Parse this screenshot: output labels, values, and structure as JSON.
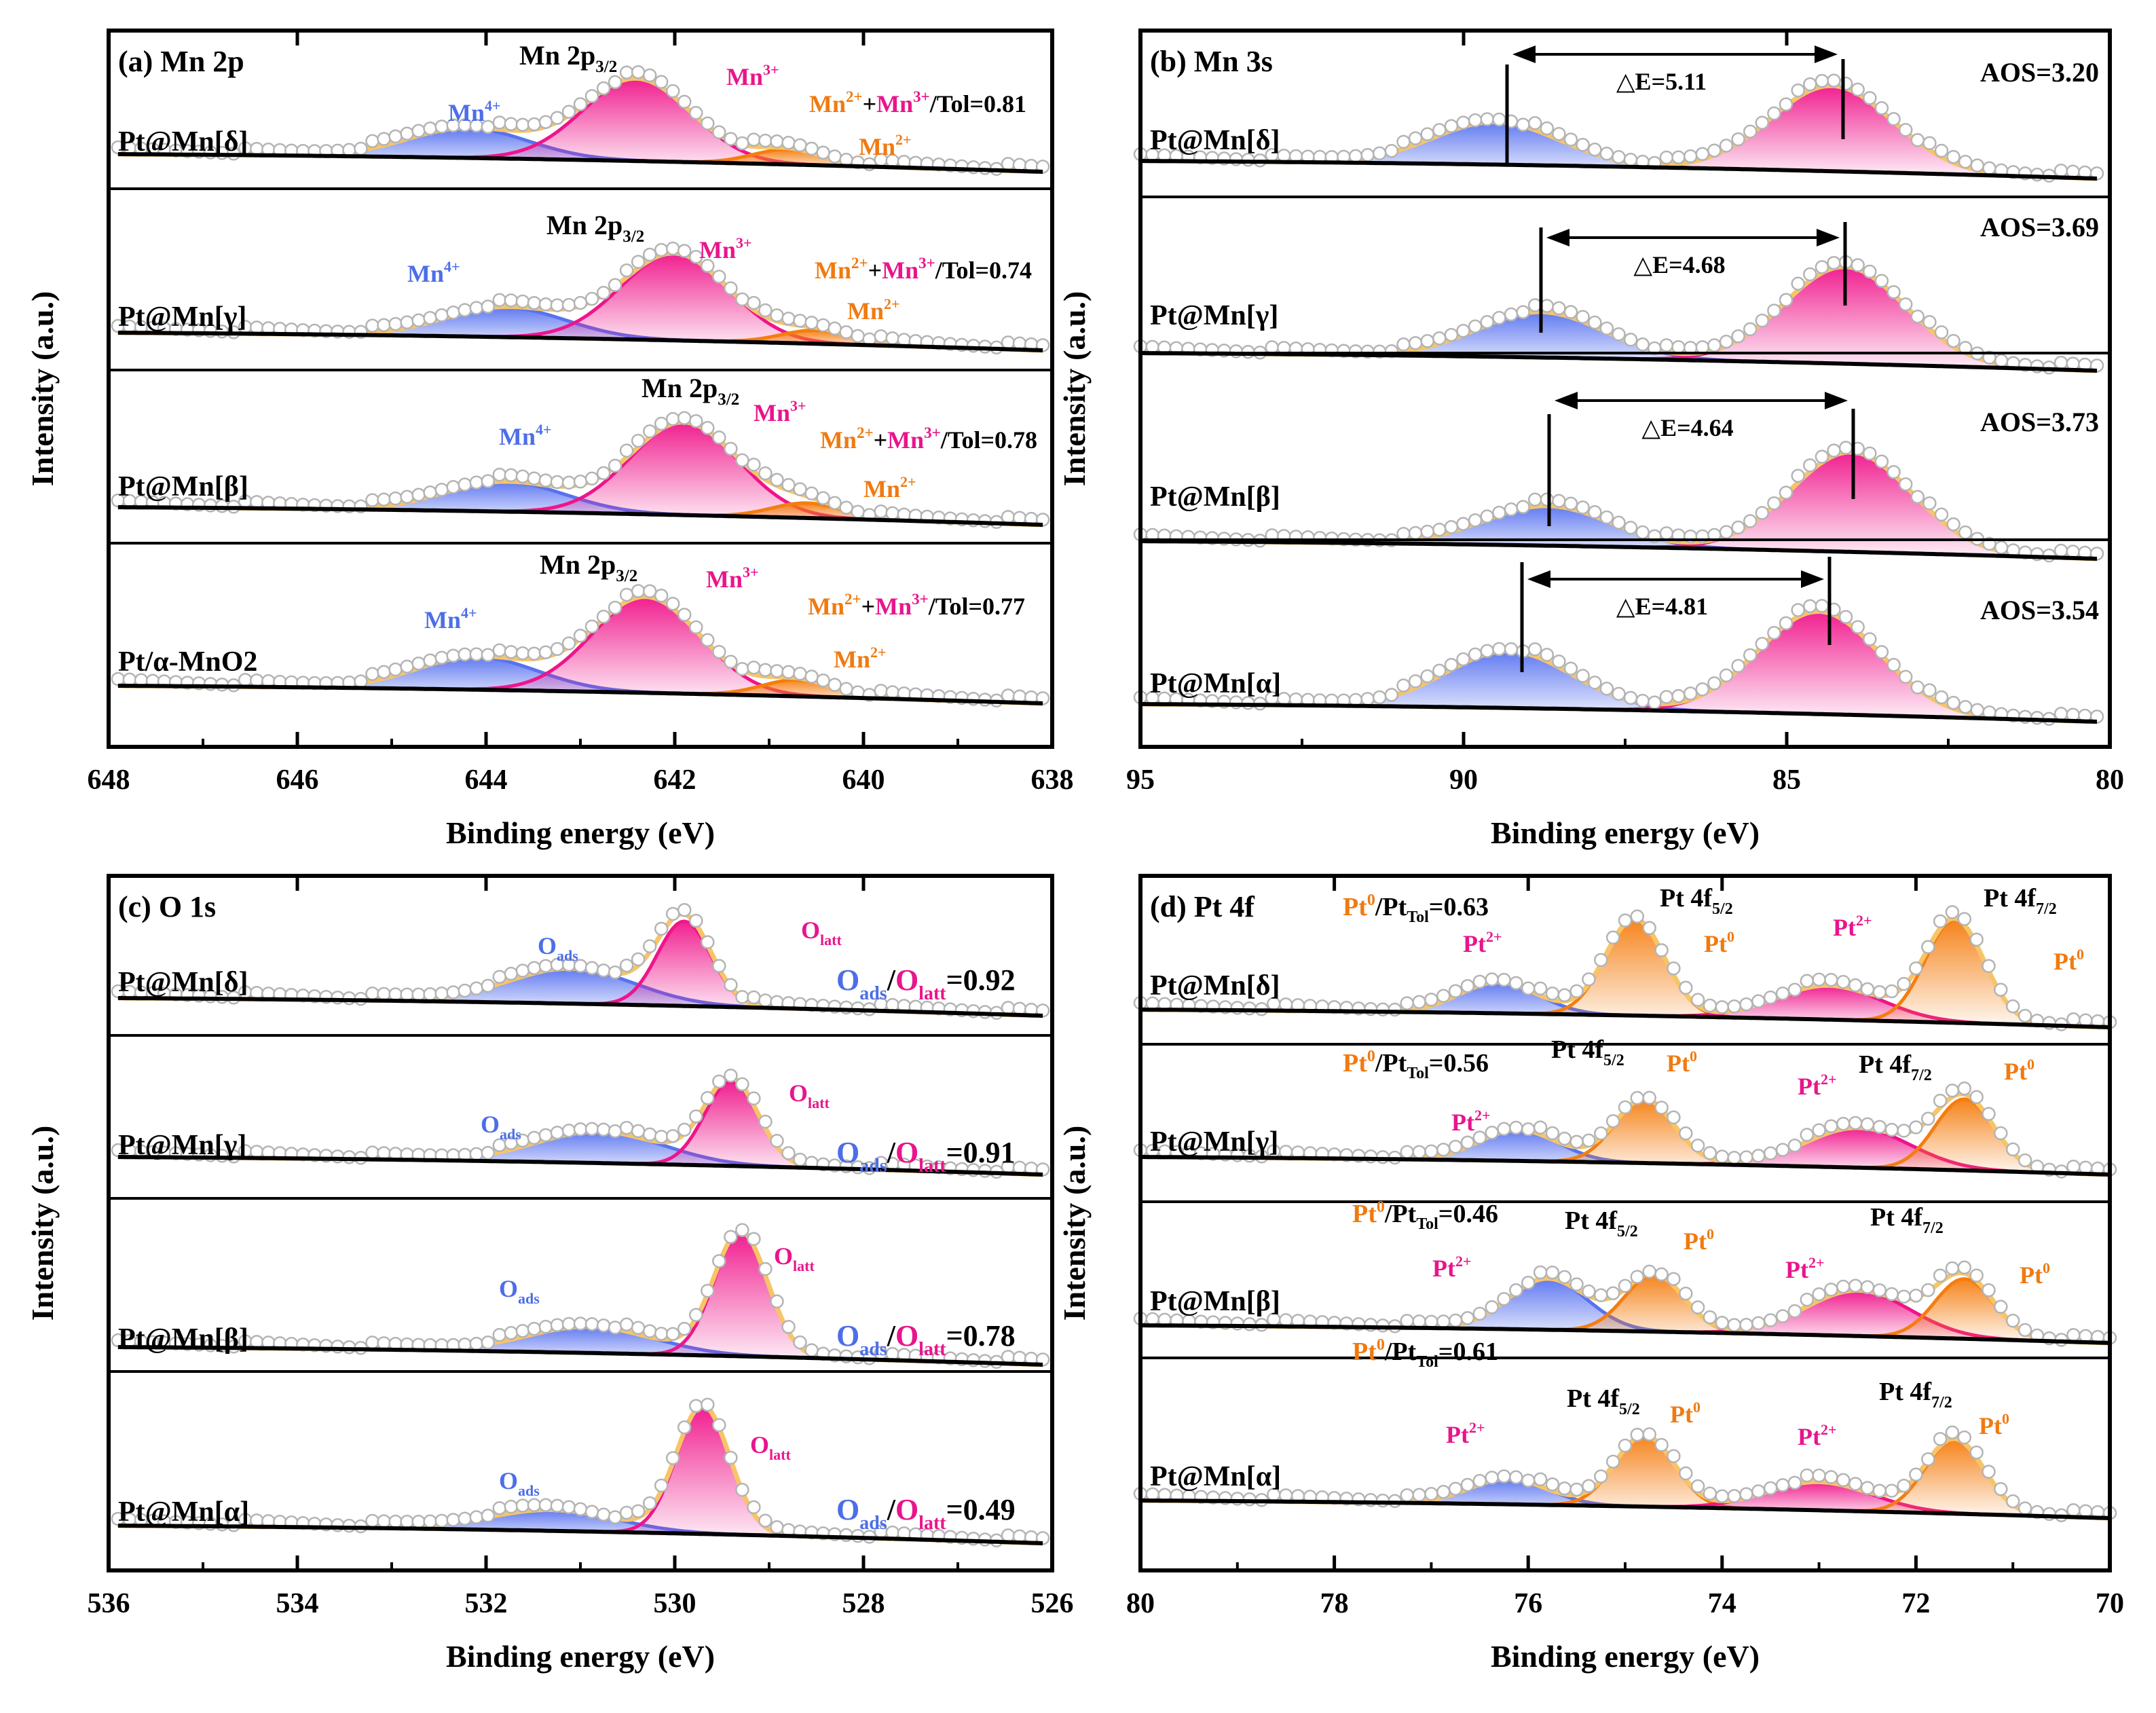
{
  "colors": {
    "frame": "#000000",
    "blue": "#5872f0",
    "pink": "#f0148a",
    "orange": "#f57d0f",
    "envelope": "#f7c567",
    "dots": "#b4b4b4",
    "text_black": "#000000",
    "text_blue": "#4d6ee8",
    "text_pink": "#e8158c",
    "text_orange": "#f07a10"
  },
  "chart_data": [
    {
      "panel": "a",
      "type": "line",
      "title": "(a)  Mn 2p",
      "xlabel": "Binding energy (eV)",
      "ylabel": "Intensity (a.u.)",
      "xlim": [
        648,
        638
      ],
      "reversed_x": true,
      "x_ticks": [
        648,
        646,
        644,
        642,
        640,
        638
      ],
      "x_tick_labels": [
        "648",
        "646",
        "644",
        "642",
        "640",
        "638"
      ],
      "series": [
        {
          "name": "Pt@Mn[δ]",
          "range": [
            647.9,
            638.1
          ],
          "peaks": [
            {
              "species": "Mn4+",
              "center": 644.2,
              "height": 0.2
            },
            {
              "species": "Mn3+",
              "center": 642.4,
              "height": 0.55
            },
            {
              "species": "Mn2+",
              "center": 640.8,
              "height": 0.1
            }
          ],
          "ratio_text": "Mn2++Mn3+/Tol=0.81"
        },
        {
          "name": "Pt@Mn[γ]",
          "range": [
            647.9,
            638.1
          ],
          "peaks": [
            {
              "species": "Mn4+",
              "center": 643.8,
              "height": 0.2
            },
            {
              "species": "Mn3+",
              "center": 642.0,
              "height": 0.58
            },
            {
              "species": "Mn2+",
              "center": 640.5,
              "height": 0.09
            }
          ],
          "ratio_text": "Mn2++Mn3+/Tol=0.74"
        },
        {
          "name": "Pt@Mn[β]",
          "range": [
            647.9,
            638.1
          ],
          "peaks": [
            {
              "species": "Mn4+",
              "center": 643.8,
              "height": 0.2
            },
            {
              "species": "Mn3+",
              "center": 641.9,
              "height": 0.62
            },
            {
              "species": "Mn2+",
              "center": 640.6,
              "height": 0.1
            }
          ],
          "ratio_text": "Mn2++Mn3+/Tol=0.78"
        },
        {
          "name": "Pt/α-MnO2",
          "range": [
            647.9,
            638.1
          ],
          "peaks": [
            {
              "species": "Mn4+",
              "center": 644.1,
              "height": 0.22
            },
            {
              "species": "Mn3+",
              "center": 642.3,
              "height": 0.64
            },
            {
              "species": "Mn2+",
              "center": 640.7,
              "height": 0.11
            }
          ],
          "ratio_text": "Mn2++Mn3+/Tol=0.77"
        }
      ]
    },
    {
      "panel": "b",
      "type": "line",
      "title": "(b)  Mn 3s",
      "xlabel": "Binding energy (eV)",
      "ylabel": "Intensity (a.u.)",
      "xlim": [
        95,
        80
      ],
      "reversed_x": true,
      "x_ticks": [
        95,
        90,
        85,
        80
      ],
      "x_tick_labels": [
        "95",
        "90",
        "85",
        "80"
      ],
      "series": [
        {
          "name": "Pt@Mn[δ]",
          "range": [
            95,
            80.2
          ],
          "peaks": [
            {
              "center": 89.5,
              "height": 0.3
            },
            {
              "center": 84.3,
              "height": 0.6
            }
          ],
          "delta_e": "△E=5.11",
          "aos": "AOS=3.20"
        },
        {
          "name": "Pt@Mn[γ]",
          "range": [
            95,
            80.2
          ],
          "peaks": [
            {
              "center": 88.8,
              "height": 0.32
            },
            {
              "center": 84.1,
              "height": 0.68
            }
          ],
          "delta_e": "△E=4.68",
          "aos": "AOS=3.69"
        },
        {
          "name": "Pt@Mn[β]",
          "range": [
            95,
            80.2
          ],
          "peaks": [
            {
              "center": 88.7,
              "height": 0.28
            },
            {
              "center": 84.0,
              "height": 0.7
            }
          ],
          "delta_e": "△E=4.64",
          "aos": "AOS=3.73"
        },
        {
          "name": "Pt@Mn[α]",
          "range": [
            95,
            80.2
          ],
          "peaks": [
            {
              "center": 89.3,
              "height": 0.4
            },
            {
              "center": 84.5,
              "height": 0.72
            }
          ],
          "delta_e": "△E=4.81",
          "aos": "AOS=3.54"
        }
      ]
    },
    {
      "panel": "c",
      "type": "line",
      "title": "(c)  O 1s",
      "xlabel": "Binding energy (eV)",
      "ylabel": "Intensity (a.u.)",
      "xlim": [
        536,
        526
      ],
      "reversed_x": true,
      "x_ticks": [
        536,
        534,
        532,
        530,
        528,
        526
      ],
      "x_tick_labels": [
        "536",
        "534",
        "532",
        "530",
        "528",
        "526"
      ],
      "series": [
        {
          "name": "Pt@Mn[δ]",
          "range": [
            535.9,
            526.1
          ],
          "peaks": [
            {
              "species": "Oads",
              "center": 531.1,
              "height": 0.2
            },
            {
              "species": "Olatt",
              "center": 529.9,
              "height": 0.48
            }
          ],
          "ratio_text": "Oads/Olatt=0.92"
        },
        {
          "name": "Pt@Mn[γ]",
          "range": [
            535.9,
            526.1
          ],
          "peaks": [
            {
              "species": "Oads",
              "center": 530.8,
              "height": 0.18
            },
            {
              "species": "Olatt",
              "center": 529.4,
              "height": 0.48
            }
          ],
          "ratio_text": "Oads/Olatt=0.91"
        },
        {
          "name": "Pt@Mn[β]",
          "range": [
            535.9,
            526.1
          ],
          "peaks": [
            {
              "species": "Oads",
              "center": 530.9,
              "height": 0.15
            },
            {
              "species": "Olatt",
              "center": 529.3,
              "height": 0.7
            }
          ],
          "ratio_text": "Oads/Olatt=0.78"
        },
        {
          "name": "Pt@Mn[α]",
          "range": [
            535.9,
            526.1
          ],
          "peaks": [
            {
              "species": "Oads",
              "center": 531.3,
              "height": 0.12
            },
            {
              "species": "Olatt",
              "center": 529.7,
              "height": 0.72
            }
          ],
          "ratio_text": "Oads/Olatt=0.49"
        }
      ]
    },
    {
      "panel": "d",
      "type": "line",
      "title": "(d)  Pt 4f",
      "xlabel": "Binding energy (eV)",
      "ylabel": "Intensity (a.u.)",
      "xlim": [
        80,
        70
      ],
      "reversed_x": true,
      "x_ticks": [
        80,
        78,
        76,
        74,
        72,
        70
      ],
      "x_tick_labels": [
        "80",
        "78",
        "76",
        "74",
        "72",
        "70"
      ],
      "series": [
        {
          "name": "Pt@Mn[δ]",
          "range": [
            80,
            70
          ],
          "peaks": [
            {
              "species": "Pt2+ 4f5/2",
              "center": 76.3,
              "height": 0.22
            },
            {
              "species": "Pt0 4f5/2",
              "center": 74.9,
              "height": 0.68
            },
            {
              "species": "Pt2+ 4f7/2",
              "center": 72.9,
              "height": 0.24
            },
            {
              "species": "Pt0 4f7/2",
              "center": 71.6,
              "height": 0.72
            }
          ],
          "ratio_text": "Pt0/PtTol=0.63"
        },
        {
          "name": "Pt@Mn[γ]",
          "range": [
            80,
            70
          ],
          "peaks": [
            {
              "species": "Pt2+ 4f5/2",
              "center": 76.1,
              "height": 0.22
            },
            {
              "species": "Pt0 4f5/2",
              "center": 74.8,
              "height": 0.45
            },
            {
              "species": "Pt2+ 4f7/2",
              "center": 72.6,
              "height": 0.28
            },
            {
              "species": "Pt0 4f7/2",
              "center": 71.5,
              "height": 0.5
            }
          ],
          "ratio_text": "Pt0/PtTol=0.56"
        },
        {
          "name": "Pt@Mn[β]",
          "range": [
            80,
            70
          ],
          "peaks": [
            {
              "species": "Pt2+ 4f5/2",
              "center": 75.8,
              "height": 0.36
            },
            {
              "species": "Pt0 4f5/2",
              "center": 74.7,
              "height": 0.4
            },
            {
              "species": "Pt2+ 4f7/2",
              "center": 72.6,
              "height": 0.32
            },
            {
              "species": "Pt0 4f7/2",
              "center": 71.5,
              "height": 0.42
            }
          ],
          "ratio_text": "Pt0/PtTol=0.46"
        },
        {
          "name": "Pt@Mn[α]",
          "range": [
            80,
            70
          ],
          "peaks": [
            {
              "species": "Pt2+ 4f5/2",
              "center": 76.2,
              "height": 0.18
            },
            {
              "species": "Pt0 4f5/2",
              "center": 74.8,
              "height": 0.5
            },
            {
              "species": "Pt2+ 4f7/2",
              "center": 73.0,
              "height": 0.2
            },
            {
              "species": "Pt0 4f7/2",
              "center": 71.6,
              "height": 0.52
            }
          ],
          "ratio_text": "Pt0/PtTol=0.61"
        }
      ]
    }
  ]
}
